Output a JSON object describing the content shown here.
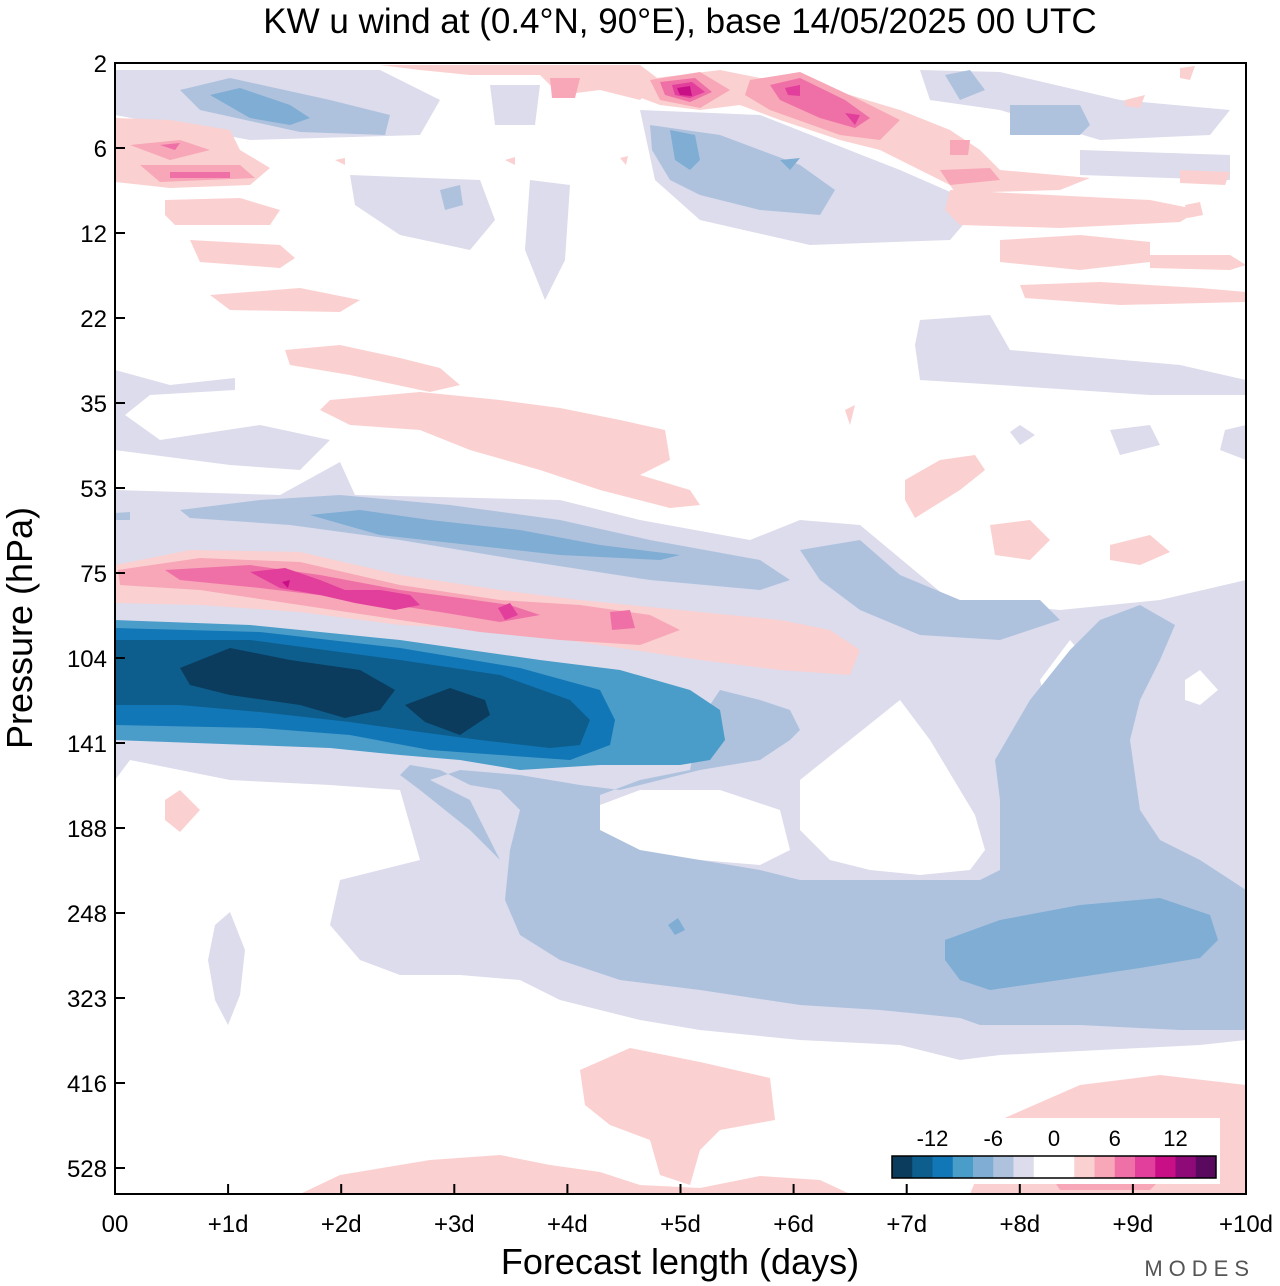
{
  "chart_data": {
    "type": "heatmap",
    "title": "KW u wind at (0.4°N, 90°E),  base 14/05/2025  00 UTC",
    "xlabel": "Forecast length (days)",
    "ylabel": "Pressure (hPa)",
    "x_ticks": [
      "00",
      "+1d",
      "+2d",
      "+3d",
      "+4d",
      "+5d",
      "+6d",
      "+7d",
      "+8d",
      "+9d",
      "+10d"
    ],
    "y_ticks": [
      "2",
      "6",
      "12",
      "22",
      "35",
      "53",
      "75",
      "104",
      "141",
      "188",
      "248",
      "323",
      "416",
      "528"
    ],
    "xlim": [
      0,
      10
    ],
    "colorbar": {
      "tick_labels": [
        "-12",
        "-6",
        "0",
        "6",
        "12"
      ],
      "levels": [
        -16,
        -14,
        -12,
        -10,
        -8,
        -6,
        -4,
        -2,
        0,
        2,
        4,
        6,
        8,
        10,
        12,
        14,
        16
      ],
      "colors": [
        "#0b3c5d",
        "#0d5e8c",
        "#1177b7",
        "#4a9cc9",
        "#7fadd3",
        "#aec2de",
        "#dcdcec",
        "#ffffff",
        "#ffffff",
        "#fbd0d0",
        "#f7a7b7",
        "#ef6fa7",
        "#e23e9b",
        "#c80f86",
        "#8e0a78",
        "#5a0a5e"
      ]
    },
    "features": [
      {
        "name": "westerly band",
        "sign": "positive",
        "pressure_hPa": 75,
        "from_day": 0,
        "to_day": 6.5,
        "peak_ms": 12
      },
      {
        "name": "easterly band",
        "sign": "negative",
        "pressure_hPa": 120,
        "from_day": 0,
        "to_day": 6.5,
        "peak_ms": -16
      },
      {
        "name": "easterly band",
        "sign": "negative",
        "pressure_hPa": 60,
        "from_day": 0,
        "to_day": 7,
        "peak_ms": -8
      },
      {
        "name": "upper tropospheric easterlies",
        "sign": "negative",
        "pressure_hPa": 260,
        "from_day": 2,
        "to_day": 10,
        "peak_ms": -8
      },
      {
        "name": "stratospheric westerlies",
        "sign": "positive",
        "pressure_hPa": 3,
        "from_day": 4,
        "to_day": 7,
        "peak_ms": 12
      }
    ]
  },
  "brand": "MODES"
}
